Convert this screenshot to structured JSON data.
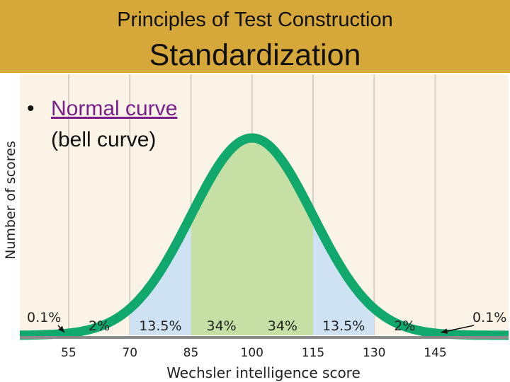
{
  "slide": {
    "subtitle": "Principles of Test Construction",
    "title": "Standardization",
    "bullet_link": "Normal curve",
    "bullet_rest": "(bell curve)"
  },
  "chart_data": {
    "type": "area",
    "title": "",
    "xlabel": "Wechsler intelligence score",
    "ylabel": "Number of scores",
    "mean": 100,
    "sd": 15,
    "xlim": [
      43,
      163
    ],
    "ticks": [
      55,
      70,
      85,
      100,
      115,
      130,
      145
    ],
    "regions": [
      {
        "from": 55,
        "to": 70,
        "label": "2%"
      },
      {
        "from": 70,
        "to": 85,
        "label": "13.5%",
        "shade": "light-blue"
      },
      {
        "from": 85,
        "to": 100,
        "label": "34%",
        "shade": "light-green"
      },
      {
        "from": 100,
        "to": 115,
        "label": "34%",
        "shade": "light-green"
      },
      {
        "from": 115,
        "to": 130,
        "label": "13.5%",
        "shade": "light-blue"
      },
      {
        "from": 130,
        "to": 145,
        "label": "2%"
      }
    ],
    "tails": [
      {
        "side": "left",
        "beyond": 55,
        "label": "0.1%"
      },
      {
        "side": "right",
        "beyond": 145,
        "label": "0.1%"
      }
    ]
  },
  "colors": {
    "header": "#d6a83a",
    "background": "#fbf3e6",
    "curve": "#10a86c",
    "center_fill": "#c5dfa4",
    "side_fill": "#cfe2f3",
    "grid": "#d6d2c8",
    "axis": "#8a8a8a"
  }
}
